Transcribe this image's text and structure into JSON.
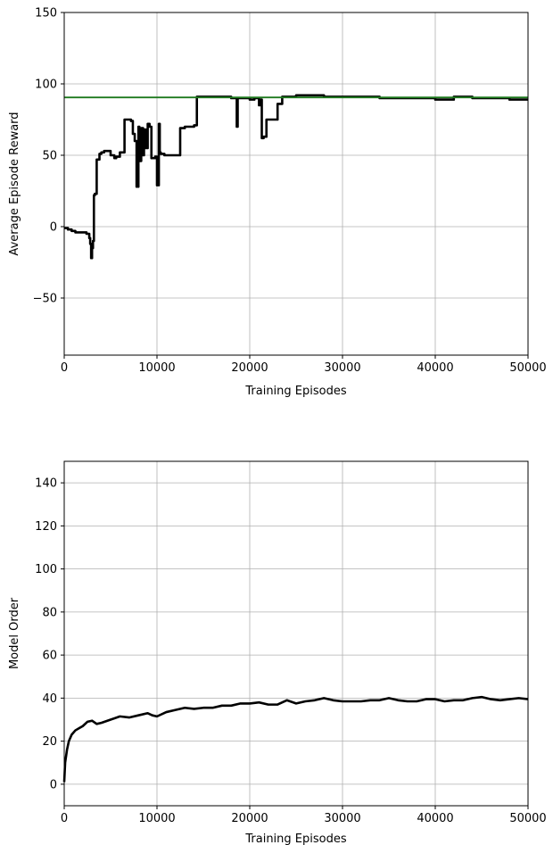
{
  "chart_data": [
    {
      "type": "line",
      "xlabel": "Training Episodes",
      "ylabel": "Average Episode Reward",
      "xlim": [
        0,
        50000
      ],
      "ylim": [
        -90,
        150
      ],
      "xticks": [
        0,
        10000,
        20000,
        30000,
        40000,
        50000
      ],
      "yticks": [
        -50,
        0,
        50,
        100,
        150
      ],
      "xtick_labels": [
        "0",
        "10000",
        "20000",
        "30000",
        "40000",
        "50000"
      ],
      "ytick_labels": [
        "−50",
        "0",
        "50",
        "100",
        "150"
      ],
      "grid": true,
      "series": [
        {
          "color": "#000000",
          "style": "step",
          "x": [
            0,
            400,
            800,
            1200,
            1600,
            2000,
            2400,
            2700,
            2800,
            2900,
            3000,
            3100,
            3200,
            3300,
            3500,
            3800,
            4000,
            4300,
            4600,
            5000,
            5400,
            5600,
            6000,
            6500,
            6600,
            7200,
            7400,
            7600,
            7800,
            8000,
            8100,
            8300,
            8500,
            8600,
            8800,
            9000,
            9200,
            9400,
            9800,
            10000,
            10200,
            10300,
            10400,
            10600,
            10800,
            11500,
            12000,
            12500,
            13000,
            13500,
            14000,
            14300,
            15000,
            16000,
            17000,
            18000,
            18500,
            18600,
            18700,
            19000,
            20000,
            20500,
            21000,
            21200,
            21300,
            21500,
            21800,
            22000,
            22500,
            23000,
            23500,
            24000,
            25000,
            26000,
            27000,
            28000,
            30000,
            32000,
            34000,
            36000,
            38000,
            40000,
            42000,
            44000,
            46000,
            48000,
            50000
          ],
          "y": [
            -1,
            -2,
            -3,
            -4,
            -4,
            -4,
            -5,
            -8,
            -12,
            -22,
            -15,
            -10,
            22,
            23,
            47,
            51,
            52,
            53,
            53,
            50,
            48,
            49,
            52,
            75,
            75,
            74,
            65,
            60,
            28,
            70,
            46,
            69,
            50,
            68,
            55,
            72,
            70,
            48,
            49,
            29,
            72,
            52,
            51,
            51,
            50,
            50,
            50,
            69,
            70,
            70,
            71,
            91,
            91,
            91,
            91,
            90,
            90,
            70,
            90,
            90,
            89,
            90,
            85,
            89,
            62,
            63,
            75,
            75,
            75,
            86,
            91,
            91,
            92,
            92,
            92,
            91,
            91,
            91,
            90,
            90,
            90,
            89,
            91,
            90,
            90,
            89,
            89
          ]
        },
        {
          "color": "#1e7a1e",
          "style": "hline",
          "x": [
            0,
            50000
          ],
          "y": [
            90.5,
            90.5
          ]
        }
      ]
    },
    {
      "type": "line",
      "xlabel": "Training Episodes",
      "ylabel": "Model Order",
      "xlim": [
        0,
        50000
      ],
      "ylim": [
        -10,
        150
      ],
      "xticks": [
        0,
        10000,
        20000,
        30000,
        40000,
        50000
      ],
      "yticks": [
        0,
        20,
        40,
        60,
        80,
        100,
        120,
        140
      ],
      "xtick_labels": [
        "0",
        "10000",
        "20000",
        "30000",
        "40000",
        "50000"
      ],
      "ytick_labels": [
        "0",
        "20",
        "40",
        "60",
        "80",
        "100",
        "120",
        "140"
      ],
      "grid": true,
      "series": [
        {
          "color": "#000000",
          "style": "line",
          "x": [
            0,
            100,
            300,
            500,
            800,
            1200,
            1600,
            2000,
            2500,
            3000,
            3500,
            4000,
            5000,
            6000,
            7000,
            8000,
            9000,
            9500,
            10000,
            11000,
            12000,
            13000,
            14000,
            15000,
            16000,
            17000,
            18000,
            19000,
            20000,
            21000,
            22000,
            23000,
            24000,
            25000,
            26000,
            27000,
            28000,
            29000,
            30000,
            31000,
            32000,
            33000,
            34000,
            35000,
            36000,
            37000,
            38000,
            39000,
            40000,
            41000,
            42000,
            43000,
            44000,
            45000,
            46000,
            47000,
            48000,
            49000,
            50000
          ],
          "y": [
            1,
            10,
            16,
            20,
            23,
            25,
            26,
            27,
            29,
            29.5,
            28,
            28.5,
            30,
            31.5,
            31,
            32,
            33,
            32,
            31.5,
            33.5,
            34.5,
            35.5,
            35,
            35.5,
            35.5,
            36.5,
            36.5,
            37.5,
            37.5,
            38,
            37,
            37,
            39,
            37.5,
            38.5,
            39,
            40,
            39,
            38.5,
            38.5,
            38.5,
            39,
            39,
            40,
            39,
            38.5,
            38.5,
            39.5,
            39.5,
            38.5,
            39,
            39,
            40,
            40.5,
            39.5,
            39,
            39.5,
            40,
            39.5
          ]
        }
      ]
    }
  ]
}
